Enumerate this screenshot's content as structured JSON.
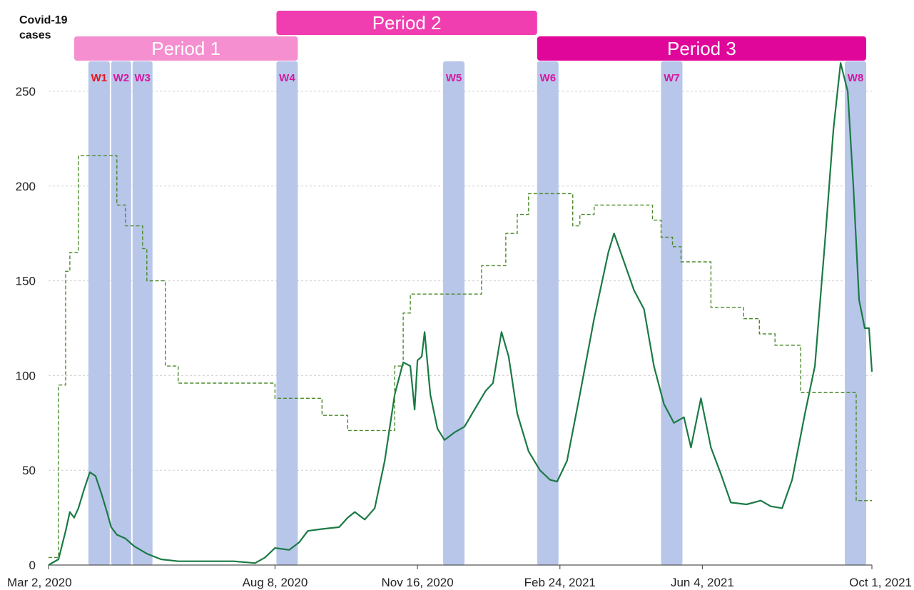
{
  "chart_data": {
    "type": "line",
    "ylabel": "Covid-19\ncases",
    "ylim": [
      0,
      265
    ],
    "yticks": [
      0,
      50,
      100,
      150,
      200,
      250
    ],
    "x_start": "2020-03-02",
    "x_end": "2021-10-01",
    "xticks": [
      {
        "date": "2020-03-02",
        "label": "Mar 2, 2020"
      },
      {
        "date": "2020-08-08",
        "label": "Aug 8, 2020"
      },
      {
        "date": "2020-11-16",
        "label": "Nov 16, 2020"
      },
      {
        "date": "2021-02-24",
        "label": "Feb 24, 2021"
      },
      {
        "date": "2021-06-04",
        "label": "Jun 4, 2021"
      },
      {
        "date": "2021-10-01",
        "label": "Oct 1, 2021"
      }
    ],
    "grid": "horizontal-dashed",
    "colors": {
      "cases_line": "#1b7a45",
      "step_line": "#4a8a2a",
      "window_band": "#b8c6ea",
      "period1": "#f58fcf",
      "period2": "#f03db0",
      "period3": "#e0069a",
      "window_label": "#d6179e",
      "window_label_highlight": "#e8141e"
    },
    "periods": [
      {
        "label": "Period 1",
        "start": "2020-03-20",
        "end": "2020-08-24",
        "color": "#f58fcf"
      },
      {
        "label": "Period 2",
        "start": "2020-08-09",
        "end": "2021-02-08",
        "color": "#f03db0"
      },
      {
        "label": "Period 3",
        "start": "2021-02-08",
        "end": "2021-09-27",
        "color": "#e0069a"
      }
    ],
    "windows": [
      {
        "label": "W1",
        "start": "2020-03-30",
        "end": "2020-04-14",
        "highlight": true
      },
      {
        "label": "W2",
        "start": "2020-04-15",
        "end": "2020-04-29"
      },
      {
        "label": "W3",
        "start": "2020-04-30",
        "end": "2020-05-14"
      },
      {
        "label": "W4",
        "start": "2020-08-09",
        "end": "2020-08-24"
      },
      {
        "label": "W5",
        "start": "2020-12-04",
        "end": "2020-12-19"
      },
      {
        "label": "W6",
        "start": "2021-02-08",
        "end": "2021-02-23"
      },
      {
        "label": "W7",
        "start": "2021-05-06",
        "end": "2021-05-21"
      },
      {
        "label": "W8",
        "start": "2021-09-12",
        "end": "2021-09-27"
      }
    ],
    "series": [
      {
        "style": "solid",
        "points": [
          [
            "2020-03-02",
            0
          ],
          [
            "2020-03-09",
            3
          ],
          [
            "2020-03-14",
            18
          ],
          [
            "2020-03-17",
            28
          ],
          [
            "2020-03-20",
            25
          ],
          [
            "2020-03-23",
            30
          ],
          [
            "2020-03-27",
            40
          ],
          [
            "2020-03-31",
            49
          ],
          [
            "2020-04-04",
            47
          ],
          [
            "2020-04-08",
            38
          ],
          [
            "2020-04-12",
            28
          ],
          [
            "2020-04-15",
            20
          ],
          [
            "2020-04-19",
            16
          ],
          [
            "2020-04-25",
            14
          ],
          [
            "2020-05-01",
            10
          ],
          [
            "2020-05-10",
            6
          ],
          [
            "2020-05-20",
            3
          ],
          [
            "2020-06-01",
            2
          ],
          [
            "2020-06-20",
            2
          ],
          [
            "2020-07-10",
            2
          ],
          [
            "2020-07-25",
            1
          ],
          [
            "2020-08-01",
            4
          ],
          [
            "2020-08-08",
            9
          ],
          [
            "2020-08-18",
            8
          ],
          [
            "2020-08-25",
            12
          ],
          [
            "2020-08-31",
            18
          ],
          [
            "2020-09-10",
            19
          ],
          [
            "2020-09-22",
            20
          ],
          [
            "2020-09-28",
            25
          ],
          [
            "2020-10-03",
            28
          ],
          [
            "2020-10-10",
            24
          ],
          [
            "2020-10-17",
            30
          ],
          [
            "2020-10-24",
            55
          ],
          [
            "2020-10-31",
            90
          ],
          [
            "2020-11-06",
            107
          ],
          [
            "2020-11-11",
            105
          ],
          [
            "2020-11-14",
            82
          ],
          [
            "2020-11-16",
            108
          ],
          [
            "2020-11-19",
            110
          ],
          [
            "2020-11-21",
            123
          ],
          [
            "2020-11-25",
            90
          ],
          [
            "2020-11-30",
            72
          ],
          [
            "2020-12-05",
            66
          ],
          [
            "2020-12-12",
            70
          ],
          [
            "2020-12-19",
            73
          ],
          [
            "2020-12-26",
            82
          ],
          [
            "2021-01-03",
            92
          ],
          [
            "2021-01-08",
            96
          ],
          [
            "2021-01-14",
            123
          ],
          [
            "2021-01-19",
            110
          ],
          [
            "2021-01-25",
            80
          ],
          [
            "2021-02-02",
            60
          ],
          [
            "2021-02-10",
            50
          ],
          [
            "2021-02-17",
            45
          ],
          [
            "2021-02-22",
            44
          ],
          [
            "2021-03-01",
            55
          ],
          [
            "2021-03-10",
            90
          ],
          [
            "2021-03-20",
            130
          ],
          [
            "2021-03-30",
            165
          ],
          [
            "2021-04-03",
            175
          ],
          [
            "2021-04-10",
            160
          ],
          [
            "2021-04-17",
            145
          ],
          [
            "2021-04-24",
            135
          ],
          [
            "2021-05-01",
            105
          ],
          [
            "2021-05-08",
            85
          ],
          [
            "2021-05-15",
            75
          ],
          [
            "2021-05-22",
            78
          ],
          [
            "2021-05-27",
            62
          ],
          [
            "2021-06-03",
            88
          ],
          [
            "2021-06-10",
            62
          ],
          [
            "2021-06-17",
            48
          ],
          [
            "2021-06-24",
            33
          ],
          [
            "2021-07-05",
            32
          ],
          [
            "2021-07-15",
            34
          ],
          [
            "2021-07-22",
            31
          ],
          [
            "2021-07-30",
            30
          ],
          [
            "2021-08-06",
            45
          ],
          [
            "2021-08-15",
            80
          ],
          [
            "2021-08-22",
            105
          ],
          [
            "2021-08-29",
            170
          ],
          [
            "2021-09-04",
            230
          ],
          [
            "2021-09-09",
            265
          ],
          [
            "2021-09-14",
            250
          ],
          [
            "2021-09-18",
            200
          ],
          [
            "2021-09-22",
            140
          ],
          [
            "2021-09-26",
            125
          ],
          [
            "2021-09-29",
            125
          ],
          [
            "2021-10-01",
            102
          ]
        ]
      },
      {
        "style": "dashed-step",
        "points": [
          [
            "2020-03-02",
            4
          ],
          [
            "2020-03-09",
            95
          ],
          [
            "2020-03-14",
            155
          ],
          [
            "2020-03-17",
            165
          ],
          [
            "2020-03-23",
            216
          ],
          [
            "2020-04-19",
            190
          ],
          [
            "2020-04-25",
            179
          ],
          [
            "2020-05-07",
            167
          ],
          [
            "2020-05-10",
            150
          ],
          [
            "2020-05-23",
            105
          ],
          [
            "2020-06-01",
            96
          ],
          [
            "2020-08-08",
            88
          ],
          [
            "2020-09-10",
            79
          ],
          [
            "2020-09-28",
            71
          ],
          [
            "2020-10-31",
            105
          ],
          [
            "2020-11-06",
            133
          ],
          [
            "2020-11-11",
            143
          ],
          [
            "2020-12-31",
            158
          ],
          [
            "2021-01-17",
            175
          ],
          [
            "2021-01-25",
            185
          ],
          [
            "2021-02-02",
            196
          ],
          [
            "2021-03-05",
            179
          ],
          [
            "2021-03-10",
            185
          ],
          [
            "2021-03-20",
            190
          ],
          [
            "2021-04-30",
            182
          ],
          [
            "2021-05-06",
            173
          ],
          [
            "2021-05-14",
            168
          ],
          [
            "2021-05-20",
            160
          ],
          [
            "2021-06-10",
            136
          ],
          [
            "2021-07-03",
            130
          ],
          [
            "2021-07-14",
            122
          ],
          [
            "2021-07-25",
            116
          ],
          [
            "2021-08-12",
            91
          ],
          [
            "2021-09-20",
            34
          ],
          [
            "2021-10-01",
            34
          ]
        ]
      }
    ]
  }
}
